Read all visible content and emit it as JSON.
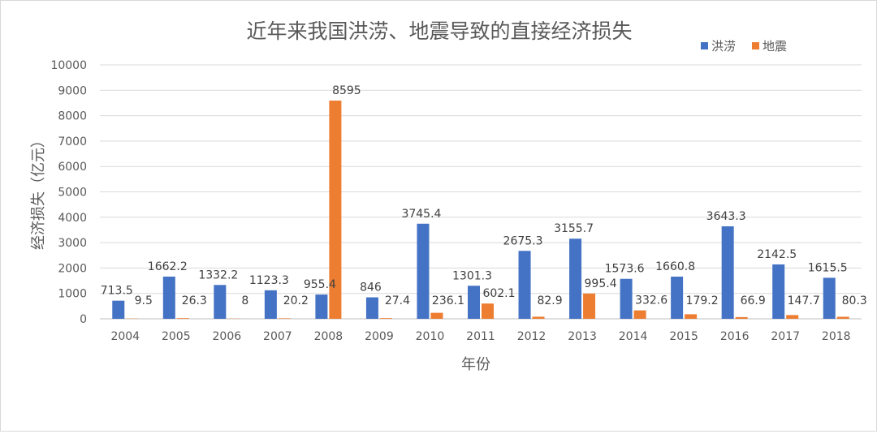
{
  "chart_data": {
    "type": "bar",
    "title": "近年来我国洪涝、地震导致的直接经济损失",
    "xlabel": "年份",
    "ylabel": "经济损失（亿元）",
    "ylim": [
      0,
      10000
    ],
    "yticks": [
      0,
      1000,
      2000,
      3000,
      4000,
      5000,
      6000,
      7000,
      8000,
      9000,
      10000
    ],
    "grid": true,
    "legend_position": "top-right",
    "categories": [
      "2004",
      "2005",
      "2006",
      "2007",
      "2008",
      "2009",
      "2010",
      "2011",
      "2012",
      "2013",
      "2014",
      "2015",
      "2016",
      "2017",
      "2018"
    ],
    "series": [
      {
        "name": "洪涝",
        "color": "#4472C4",
        "values": [
          713.5,
          1662.2,
          1332.2,
          1123.3,
          955.4,
          846,
          3745.4,
          1301.3,
          2675.3,
          3155.7,
          1573.6,
          1660.8,
          3643.3,
          2142.5,
          1615.5
        ]
      },
      {
        "name": "地震",
        "color": "#ED7D31",
        "values": [
          9.5,
          26.3,
          8,
          20.2,
          8595,
          27.4,
          236.1,
          602.1,
          82.9,
          995.4,
          332.6,
          179.2,
          66.9,
          147.7,
          80.3
        ]
      }
    ]
  }
}
